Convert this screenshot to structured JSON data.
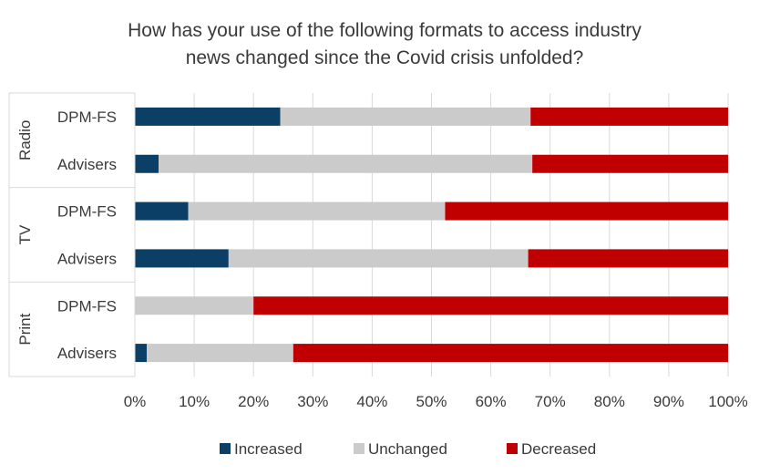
{
  "chart_data": {
    "type": "bar",
    "orientation": "horizontal",
    "stacking": "percent",
    "title": "How has your use of the following formats to access industry news changed since the Covid crisis unfolded?",
    "title_lines": [
      "How has your use of the following formats to access industry",
      "news changed since the Covid crisis unfolded?"
    ],
    "groups": [
      {
        "label": "Radio",
        "categories": [
          "DPM-FS",
          "Advisers"
        ]
      },
      {
        "label": "TV",
        "categories": [
          "DPM-FS",
          "Advisers"
        ]
      },
      {
        "label": "Print",
        "categories": [
          "DPM-FS",
          "Advisers"
        ]
      }
    ],
    "categories": [
      "Radio - DPM-FS",
      "Radio - Advisers",
      "TV - DPM-FS",
      "TV - Advisers",
      "Print - DPM-FS",
      "Print - Advisers"
    ],
    "series": [
      {
        "name": "Increased",
        "color": "#0b3f66",
        "values": [
          24.5,
          4.0,
          9.0,
          15.8,
          0,
          2.0
        ]
      },
      {
        "name": "Unchanged",
        "color": "#cbcbcb",
        "values": [
          42.2,
          63.0,
          43.3,
          50.5,
          20.0,
          24.7
        ]
      },
      {
        "name": "Decreased",
        "color": "#c00000",
        "values": [
          33.3,
          33.0,
          47.7,
          33.7,
          80.0,
          73.3
        ]
      }
    ],
    "xlim": [
      0,
      100
    ],
    "x_ticks": [
      "0%",
      "10%",
      "20%",
      "30%",
      "40%",
      "50%",
      "60%",
      "70%",
      "80%",
      "90%",
      "100%"
    ],
    "grid": true,
    "legend_position": "bottom"
  }
}
